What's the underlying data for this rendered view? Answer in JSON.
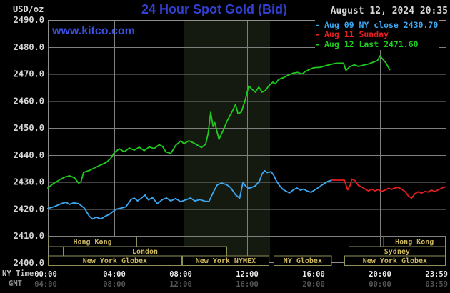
{
  "header": {
    "units_label": "USD/oz",
    "title": "24 Hour Spot Gold (Bid)",
    "datetime": "August 12, 2024 20:35",
    "watermark": "www.kitco.com"
  },
  "legend": [
    {
      "marker": "-",
      "label": "Aug 09 NY close 2430.70",
      "color": "#3da8f2"
    },
    {
      "marker": "-",
      "label": "Aug 11 Sunday",
      "color": "#e41e1e"
    },
    {
      "marker": "-",
      "label": "Aug 12 Last 2471.60",
      "color": "#1fca1f"
    }
  ],
  "axes": {
    "ny_time_label": "NY Time",
    "gmt_label": "GMT",
    "y_ticks": [
      "2490.0",
      "2480.0",
      "2470.0",
      "2460.0",
      "2450.0",
      "2440.0",
      "2430.0",
      "2420.0",
      "2410.0",
      "2400.0"
    ],
    "x_tick_hours": [
      0,
      4,
      8,
      12,
      16,
      20,
      23.983
    ],
    "x_ticks_ny": [
      "00:00",
      "04:00",
      "08:00",
      "12:00",
      "16:00",
      "20:00",
      "23:59"
    ],
    "x_ticks_gmt": [
      "04:00",
      "08:00",
      "12:00",
      "16:00",
      "20:00",
      "00:00",
      "03:59"
    ]
  },
  "sessions": [
    {
      "row": 0,
      "label": "Hong Kong",
      "start": 0.0,
      "end": 5.38
    },
    {
      "row": 0,
      "label": "Hong Kong",
      "start": 20.2,
      "end": 23.95
    },
    {
      "row": 1,
      "label": "London",
      "start": 0.9,
      "end": 10.8
    },
    {
      "row": 1,
      "label": "Sydney",
      "start": 18.1,
      "end": 23.95
    },
    {
      "row": 2,
      "label": "New York Globex",
      "start": 0.0,
      "end": 8.08
    },
    {
      "row": 2,
      "label": "New York NYMEX",
      "start": 8.08,
      "end": 13.33
    },
    {
      "row": 2,
      "label": "NY Globex",
      "start": 13.6,
      "end": 17.1
    },
    {
      "row": 2,
      "label": "New York Globex",
      "start": 17.85,
      "end": 23.95
    }
  ],
  "colors": {
    "background": "#000000",
    "grid": "#7f7f7f",
    "plot_border": "#8f8f8f",
    "shaded_band": "#141a10",
    "session_border": "#8f8f5a",
    "session_text": "#cdb85f",
    "y_tick_text": "#d6d6d6",
    "ny_tick_text": "#ececec",
    "gmt_tick_text": "#565656",
    "title_blue": "#3240d0",
    "watermark_blue": "#3a50e0"
  },
  "chart_data": {
    "type": "line",
    "title": "24 Hour Spot Gold (Bid)",
    "xlabel": "NY Time (hours)",
    "ylabel": "USD/oz",
    "xlim": [
      0,
      24
    ],
    "ylim": [
      2400,
      2490
    ],
    "y_grid_step": 10,
    "grid": true,
    "legend_position": "top-right",
    "shaded_region_hours": [
      8.17,
      13.38
    ],
    "series": [
      {
        "name": "Aug 09 NY close 2430.70",
        "color": "#3da8f2",
        "points": [
          [
            0,
            2420.2
          ],
          [
            0.4,
            2420.9
          ],
          [
            0.8,
            2422.0
          ],
          [
            1.1,
            2422.5
          ],
          [
            1.3,
            2421.7
          ],
          [
            1.55,
            2422.3
          ],
          [
            1.85,
            2422.0
          ],
          [
            2.2,
            2420.3
          ],
          [
            2.5,
            2417.3
          ],
          [
            2.7,
            2416.3
          ],
          [
            2.9,
            2417.0
          ],
          [
            3.2,
            2416.3
          ],
          [
            3.45,
            2417.3
          ],
          [
            3.7,
            2418.0
          ],
          [
            4.1,
            2419.9
          ],
          [
            4.4,
            2420.3
          ],
          [
            4.7,
            2420.8
          ],
          [
            5.0,
            2423.5
          ],
          [
            5.2,
            2424.1
          ],
          [
            5.4,
            2423.0
          ],
          [
            5.6,
            2423.9
          ],
          [
            5.85,
            2425.2
          ],
          [
            6.05,
            2423.4
          ],
          [
            6.3,
            2424.2
          ],
          [
            6.6,
            2422.0
          ],
          [
            6.9,
            2423.5
          ],
          [
            7.15,
            2424.1
          ],
          [
            7.4,
            2423.0
          ],
          [
            7.7,
            2423.9
          ],
          [
            8.0,
            2422.7
          ],
          [
            8.3,
            2423.4
          ],
          [
            8.6,
            2424.1
          ],
          [
            8.85,
            2423.0
          ],
          [
            9.15,
            2423.5
          ],
          [
            9.45,
            2422.9
          ],
          [
            9.7,
            2422.8
          ],
          [
            10.0,
            2426.7
          ],
          [
            10.2,
            2428.9
          ],
          [
            10.45,
            2429.6
          ],
          [
            10.75,
            2429.1
          ],
          [
            11.0,
            2428.0
          ],
          [
            11.3,
            2425.3
          ],
          [
            11.55,
            2424.0
          ],
          [
            11.75,
            2430.0
          ],
          [
            11.9,
            2428.5
          ],
          [
            12.1,
            2427.6
          ],
          [
            12.5,
            2428.6
          ],
          [
            12.75,
            2430.5
          ],
          [
            12.9,
            2433.0
          ],
          [
            13.05,
            2434.2
          ],
          [
            13.2,
            2433.5
          ],
          [
            13.45,
            2433.8
          ],
          [
            13.6,
            2432.5
          ],
          [
            13.75,
            2430.5
          ],
          [
            13.95,
            2428.7
          ],
          [
            14.15,
            2427.3
          ],
          [
            14.35,
            2426.6
          ],
          [
            14.55,
            2426.0
          ],
          [
            14.8,
            2427.2
          ],
          [
            15.0,
            2427.8
          ],
          [
            15.2,
            2427.0
          ],
          [
            15.4,
            2427.4
          ],
          [
            15.6,
            2426.7
          ],
          [
            15.85,
            2426.2
          ],
          [
            16.1,
            2427.2
          ],
          [
            16.35,
            2428.2
          ],
          [
            16.6,
            2429.3
          ],
          [
            16.85,
            2430.2
          ],
          [
            17.1,
            2430.7
          ]
        ]
      },
      {
        "name": "Aug 11 Sunday",
        "color": "#e41e1e",
        "points": [
          [
            17.1,
            2430.7
          ],
          [
            17.85,
            2430.7
          ],
          [
            18.05,
            2427.1
          ],
          [
            18.2,
            2428.7
          ],
          [
            18.3,
            2431.1
          ],
          [
            18.5,
            2430.5
          ],
          [
            18.7,
            2428.7
          ],
          [
            18.9,
            2428.2
          ],
          [
            19.1,
            2427.4
          ],
          [
            19.3,
            2426.7
          ],
          [
            19.5,
            2427.4
          ],
          [
            19.7,
            2426.7
          ],
          [
            19.9,
            2427.2
          ],
          [
            20.1,
            2426.5
          ],
          [
            20.3,
            2427.0
          ],
          [
            20.5,
            2427.7
          ],
          [
            20.7,
            2427.3
          ],
          [
            20.9,
            2427.8
          ],
          [
            21.1,
            2428.0
          ],
          [
            21.3,
            2427.4
          ],
          [
            21.5,
            2426.5
          ],
          [
            21.7,
            2424.9
          ],
          [
            21.9,
            2424.0
          ],
          [
            22.1,
            2425.7
          ],
          [
            22.3,
            2426.4
          ],
          [
            22.5,
            2425.9
          ],
          [
            22.7,
            2426.5
          ],
          [
            22.9,
            2426.3
          ],
          [
            23.1,
            2427.0
          ],
          [
            23.3,
            2426.5
          ],
          [
            23.6,
            2427.4
          ],
          [
            23.85,
            2428.1
          ],
          [
            23.98,
            2428.2
          ]
        ]
      },
      {
        "name": "Aug 12 Last 2471.60",
        "color": "#1fca1f",
        "points": [
          [
            0,
            2427.8
          ],
          [
            0.3,
            2429.3
          ],
          [
            0.7,
            2430.8
          ],
          [
            1.0,
            2431.8
          ],
          [
            1.3,
            2432.3
          ],
          [
            1.6,
            2431.6
          ],
          [
            1.85,
            2429.6
          ],
          [
            2.0,
            2430.2
          ],
          [
            2.15,
            2433.6
          ],
          [
            2.5,
            2434.3
          ],
          [
            2.8,
            2435.2
          ],
          [
            3.2,
            2436.4
          ],
          [
            3.5,
            2437.2
          ],
          [
            3.8,
            2438.8
          ],
          [
            4.0,
            2440.9
          ],
          [
            4.3,
            2442.3
          ],
          [
            4.6,
            2441.2
          ],
          [
            4.9,
            2442.6
          ],
          [
            5.2,
            2441.8
          ],
          [
            5.5,
            2442.9
          ],
          [
            5.8,
            2441.6
          ],
          [
            6.1,
            2443.0
          ],
          [
            6.4,
            2442.4
          ],
          [
            6.7,
            2443.8
          ],
          [
            6.9,
            2443.2
          ],
          [
            7.1,
            2441.2
          ],
          [
            7.4,
            2440.6
          ],
          [
            7.7,
            2443.6
          ],
          [
            8.0,
            2445.2
          ],
          [
            8.2,
            2444.2
          ],
          [
            8.5,
            2445.3
          ],
          [
            8.8,
            2444.4
          ],
          [
            9.05,
            2443.5
          ],
          [
            9.25,
            2442.8
          ],
          [
            9.5,
            2444.0
          ],
          [
            9.65,
            2448.0
          ],
          [
            9.8,
            2455.8
          ],
          [
            9.95,
            2450.5
          ],
          [
            10.05,
            2452.0
          ],
          [
            10.3,
            2445.8
          ],
          [
            10.55,
            2449.0
          ],
          [
            10.8,
            2452.7
          ],
          [
            11.0,
            2455.0
          ],
          [
            11.15,
            2456.7
          ],
          [
            11.3,
            2458.7
          ],
          [
            11.45,
            2455.3
          ],
          [
            11.65,
            2455.9
          ],
          [
            11.9,
            2460.7
          ],
          [
            12.1,
            2465.6
          ],
          [
            12.25,
            2464.6
          ],
          [
            12.5,
            2463.3
          ],
          [
            12.7,
            2465.2
          ],
          [
            12.9,
            2463.3
          ],
          [
            13.1,
            2463.9
          ],
          [
            13.3,
            2465.6
          ],
          [
            13.55,
            2467.0
          ],
          [
            13.7,
            2466.4
          ],
          [
            13.9,
            2468.0
          ],
          [
            14.2,
            2468.7
          ],
          [
            14.45,
            2469.5
          ],
          [
            14.75,
            2470.3
          ],
          [
            15.05,
            2470.6
          ],
          [
            15.3,
            2470.0
          ],
          [
            15.5,
            2470.9
          ],
          [
            15.75,
            2471.7
          ],
          [
            16.0,
            2472.3
          ],
          [
            16.4,
            2472.5
          ],
          [
            16.8,
            2473.2
          ],
          [
            17.2,
            2473.8
          ],
          [
            17.45,
            2474.0
          ],
          [
            17.8,
            2474.0
          ],
          [
            17.95,
            2471.3
          ],
          [
            18.15,
            2472.6
          ],
          [
            18.45,
            2473.4
          ],
          [
            18.7,
            2472.8
          ],
          [
            19.0,
            2473.3
          ],
          [
            19.3,
            2473.7
          ],
          [
            19.6,
            2474.4
          ],
          [
            19.85,
            2475.0
          ],
          [
            20.0,
            2476.7
          ],
          [
            20.15,
            2475.6
          ],
          [
            20.35,
            2474.2
          ],
          [
            20.58,
            2471.6
          ]
        ]
      }
    ]
  }
}
